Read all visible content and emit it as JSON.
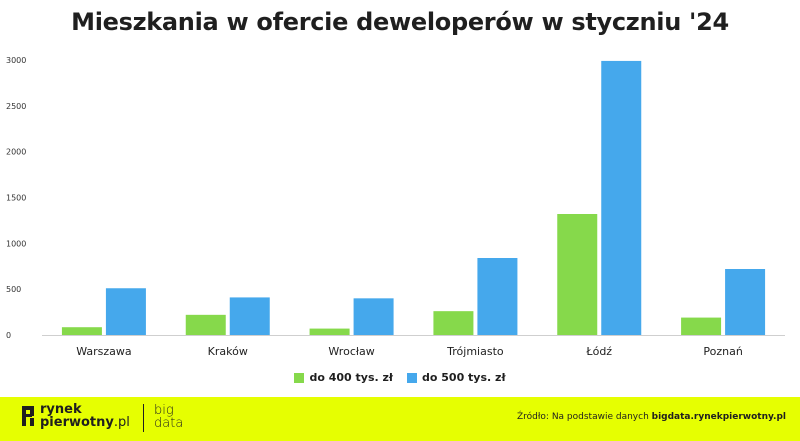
{
  "title": "Mieszkania w ofercie deweloperów w styczniu '24",
  "legend": {
    "s1_label": "do 400 tys. zł",
    "s2_label": "do 500 tys. zł"
  },
  "footer": {
    "logo_line1": "rynek",
    "logo_line2a": "pierwotny",
    "logo_line2b": ".pl",
    "big_line1": "big",
    "big_line2": "data",
    "source_prefix": "Źródło: Na podstawie danych ",
    "source_bold": "bigdata.rynekpierwotny.pl"
  },
  "colors": {
    "series1": "#86d94b",
    "series2": "#45a8ec",
    "footer_bg": "#e6ff01"
  },
  "chart_data": {
    "type": "bar",
    "categories": [
      "Warszawa",
      "Kraków",
      "Wrocław",
      "Trójmiasto",
      "Łódź",
      "Poznań"
    ],
    "series": [
      {
        "name": "do 400 tys. zł",
        "values": [
          85,
          220,
          70,
          260,
          1320,
          190
        ]
      },
      {
        "name": "do 500 tys. zł",
        "values": [
          510,
          410,
          400,
          840,
          2990,
          720
        ]
      }
    ],
    "yticks": [
      0,
      500,
      1000,
      1500,
      2000,
      2500,
      3000
    ],
    "ylim": [
      0,
      3000
    ],
    "grid": false,
    "legend_position": "bottom"
  }
}
